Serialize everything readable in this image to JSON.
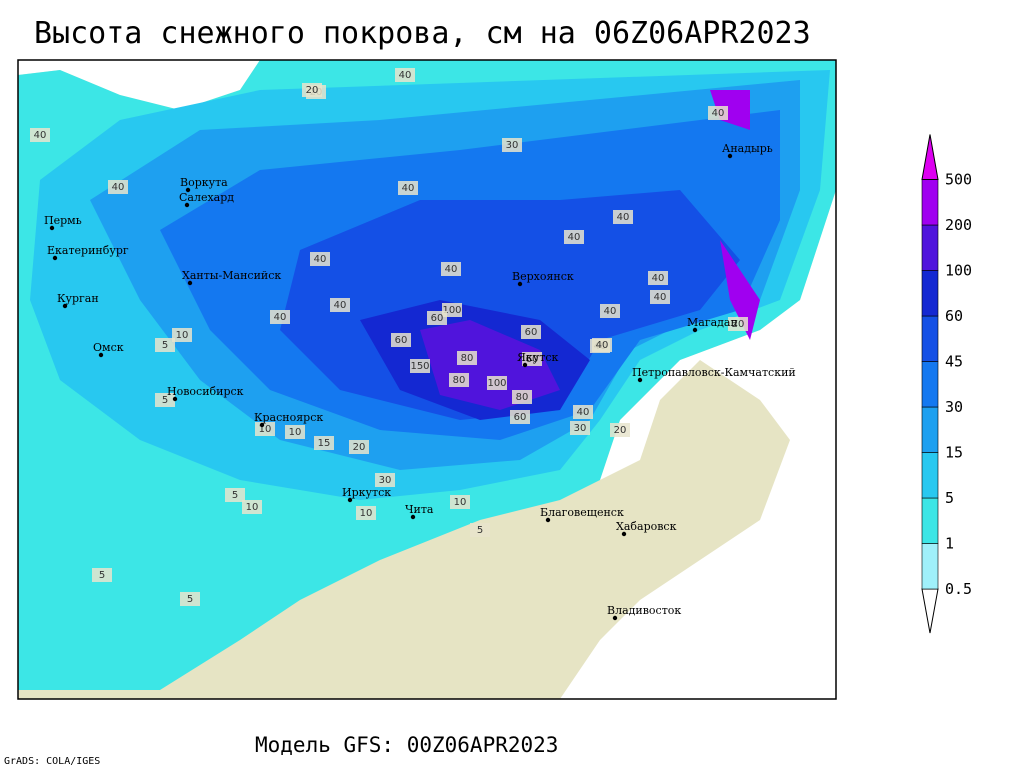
{
  "header": {
    "title": "Высота снежного покрова, см на 06Z06APR2023"
  },
  "footer": {
    "model": "Модель GFS: 00Z06APR2023",
    "credit": "GrADS: COLA/IGES"
  },
  "legend": {
    "levels": [
      0.5,
      1,
      5,
      15,
      30,
      45,
      60,
      100,
      200,
      500
    ],
    "colors": [
      "#ffffff",
      "#a0f0fa",
      "#3ce6e6",
      "#28c8f0",
      "#1ea0f0",
      "#1478f0",
      "#1450e6",
      "#1428d2",
      "#5014dc",
      "#a000f0",
      "#dc00f0"
    ]
  },
  "cities": [
    "Пермь",
    "Екатеринбург",
    "Курган",
    "Омск",
    "Ханты-Мансийск",
    "Воркута",
    "Салехард",
    "Новосибирск",
    "Красноярск",
    "Иркутск",
    "Чита",
    "Верхоянск",
    "Якутск",
    "Магадан",
    "Петропавловск-Камчатский",
    "Анадырь",
    "Благовещенск",
    "Хабаровск",
    "Владивосток"
  ],
  "contour_labels": [
    40,
    20,
    40,
    30,
    40,
    40,
    40,
    40,
    40,
    40,
    40,
    40,
    40,
    40,
    40,
    40,
    100,
    60,
    80,
    150,
    100,
    80,
    80,
    60,
    60,
    40,
    30,
    40,
    20,
    20,
    10,
    10,
    5,
    5,
    15,
    10,
    5,
    10,
    30,
    10,
    5,
    10,
    5,
    5,
    20,
    60,
    20,
    40,
    60
  ]
}
